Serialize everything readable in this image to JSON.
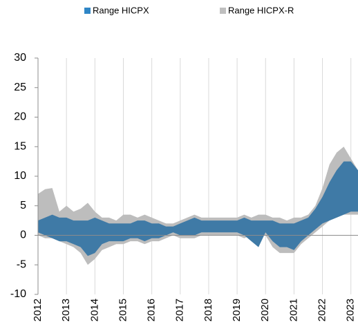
{
  "chart_data": {
    "type": "range_area",
    "x": [
      2012,
      2012.25,
      2012.5,
      2012.75,
      2013,
      2013.25,
      2013.5,
      2013.75,
      2014,
      2014.25,
      2014.5,
      2014.75,
      2015,
      2015.25,
      2015.5,
      2015.75,
      2016,
      2016.25,
      2016.5,
      2016.75,
      2017,
      2017.25,
      2017.5,
      2017.75,
      2018,
      2018.25,
      2018.5,
      2018.75,
      2019,
      2019.25,
      2019.5,
      2019.75,
      2020,
      2020.25,
      2020.5,
      2020.75,
      2021,
      2021.25,
      2021.5,
      2021.75,
      2022,
      2022.25,
      2022.5,
      2022.75,
      2023,
      2023.25
    ],
    "series": [
      {
        "name": "Range HICPX-R",
        "color": "#bdbdbd",
        "lower": [
          0,
          -0.5,
          -0.5,
          -1,
          -1.5,
          -2,
          -3,
          -5,
          -4,
          -2.5,
          -2,
          -1.5,
          -1.5,
          -1,
          -1,
          -1.5,
          -1,
          -1,
          -0.5,
          0,
          -0.5,
          -0.5,
          -0.5,
          0,
          0,
          0,
          0,
          0,
          0,
          -0.5,
          0,
          -0.5,
          0,
          -2,
          -3,
          -3,
          -3,
          -1.5,
          -0.5,
          0.5,
          1.5,
          2.5,
          3,
          3.5,
          3.5,
          3.5
        ],
        "upper": [
          7,
          7.8,
          8,
          4,
          5,
          4,
          4.5,
          5.5,
          4,
          3,
          3,
          2.5,
          3.5,
          3.5,
          3,
          3.5,
          3,
          2.5,
          2,
          2,
          2.5,
          3,
          3.5,
          3,
          3,
          3,
          3,
          3,
          3,
          3.5,
          3,
          3.5,
          3.5,
          3,
          3,
          2.5,
          3,
          3,
          3.5,
          5,
          8,
          12,
          14,
          15,
          13,
          11
        ]
      },
      {
        "name": "Range HICPX",
        "color": "#3f7aa6",
        "lower": [
          0.5,
          0,
          -0.5,
          -1,
          -1,
          -1.5,
          -2,
          -3.5,
          -3,
          -1.5,
          -1,
          -1,
          -1,
          -0.5,
          -0.5,
          -1,
          -0.5,
          -0.5,
          0,
          0.5,
          0,
          0,
          0,
          0.5,
          0.5,
          0.5,
          0.5,
          0.5,
          0.5,
          0,
          -1,
          -2,
          0.5,
          -1,
          -2,
          -2,
          -2.5,
          -1,
          0,
          1,
          2,
          2.5,
          3,
          3.5,
          4,
          4
        ],
        "upper": [
          2.5,
          3,
          3.5,
          3,
          3,
          2.5,
          2.5,
          2.5,
          3,
          2.5,
          2,
          2,
          2,
          2,
          2.5,
          2.5,
          2,
          2,
          1.5,
          1.5,
          2,
          2.5,
          3,
          2.5,
          2.5,
          2.5,
          2.5,
          2.5,
          2.5,
          3,
          2.5,
          2.5,
          2.5,
          2.5,
          2,
          2,
          2,
          2.5,
          3,
          4.5,
          6.5,
          9,
          11,
          12.5,
          12.5,
          11
        ]
      }
    ],
    "legend_colors": [
      "#2f86c6",
      "#bfbfbf"
    ],
    "xlim": [
      2012,
      2023.25
    ],
    "xticks": [
      2012,
      2013,
      2014,
      2015,
      2016,
      2017,
      2018,
      2019,
      2020,
      2021,
      2022,
      2023
    ],
    "ylim": [
      -10,
      30
    ],
    "yticks": [
      -10,
      -5,
      0,
      5,
      10,
      15,
      20,
      25,
      30
    ],
    "grid": "x"
  }
}
